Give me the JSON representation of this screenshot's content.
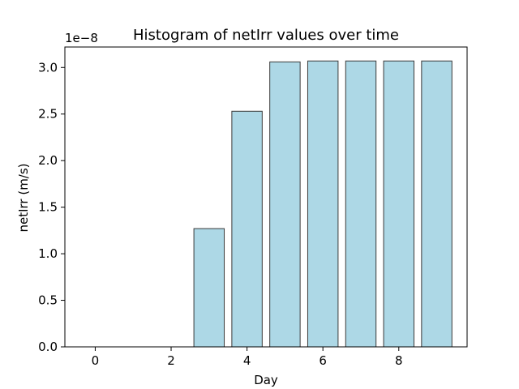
{
  "chart_data": {
    "type": "bar",
    "title": "Histogram of netIrr values over time",
    "xlabel": "Day",
    "ylabel": "netIrr (m/s)",
    "y_offset_label": "1e−8",
    "categories": [
      0,
      1,
      2,
      3,
      4,
      5,
      6,
      7,
      8,
      9
    ],
    "values": [
      0.0,
      0.0,
      0.0,
      1.27e-08,
      2.53e-08,
      3.06e-08,
      3.07e-08,
      3.07e-08,
      3.07e-08,
      3.07e-08
    ],
    "xlim": [
      -0.8,
      9.8
    ],
    "ylim": [
      0,
      3.22e-08
    ],
    "x_ticks": [
      0,
      2,
      4,
      6,
      8
    ],
    "x_tick_labels": [
      "0",
      "2",
      "4",
      "6",
      "8"
    ],
    "y_ticks": [
      0,
      5e-09,
      1e-08,
      1.5e-08,
      2e-08,
      2.5e-08,
      3e-08
    ],
    "y_tick_labels": [
      "0.0",
      "0.5",
      "1.0",
      "1.5",
      "2.0",
      "2.5",
      "3.0"
    ],
    "bar_width": 0.8,
    "grid": false,
    "colors": {
      "bar_fill": "#add8e6",
      "bar_edge": "#3a3a3a",
      "axis": "#000000"
    }
  }
}
